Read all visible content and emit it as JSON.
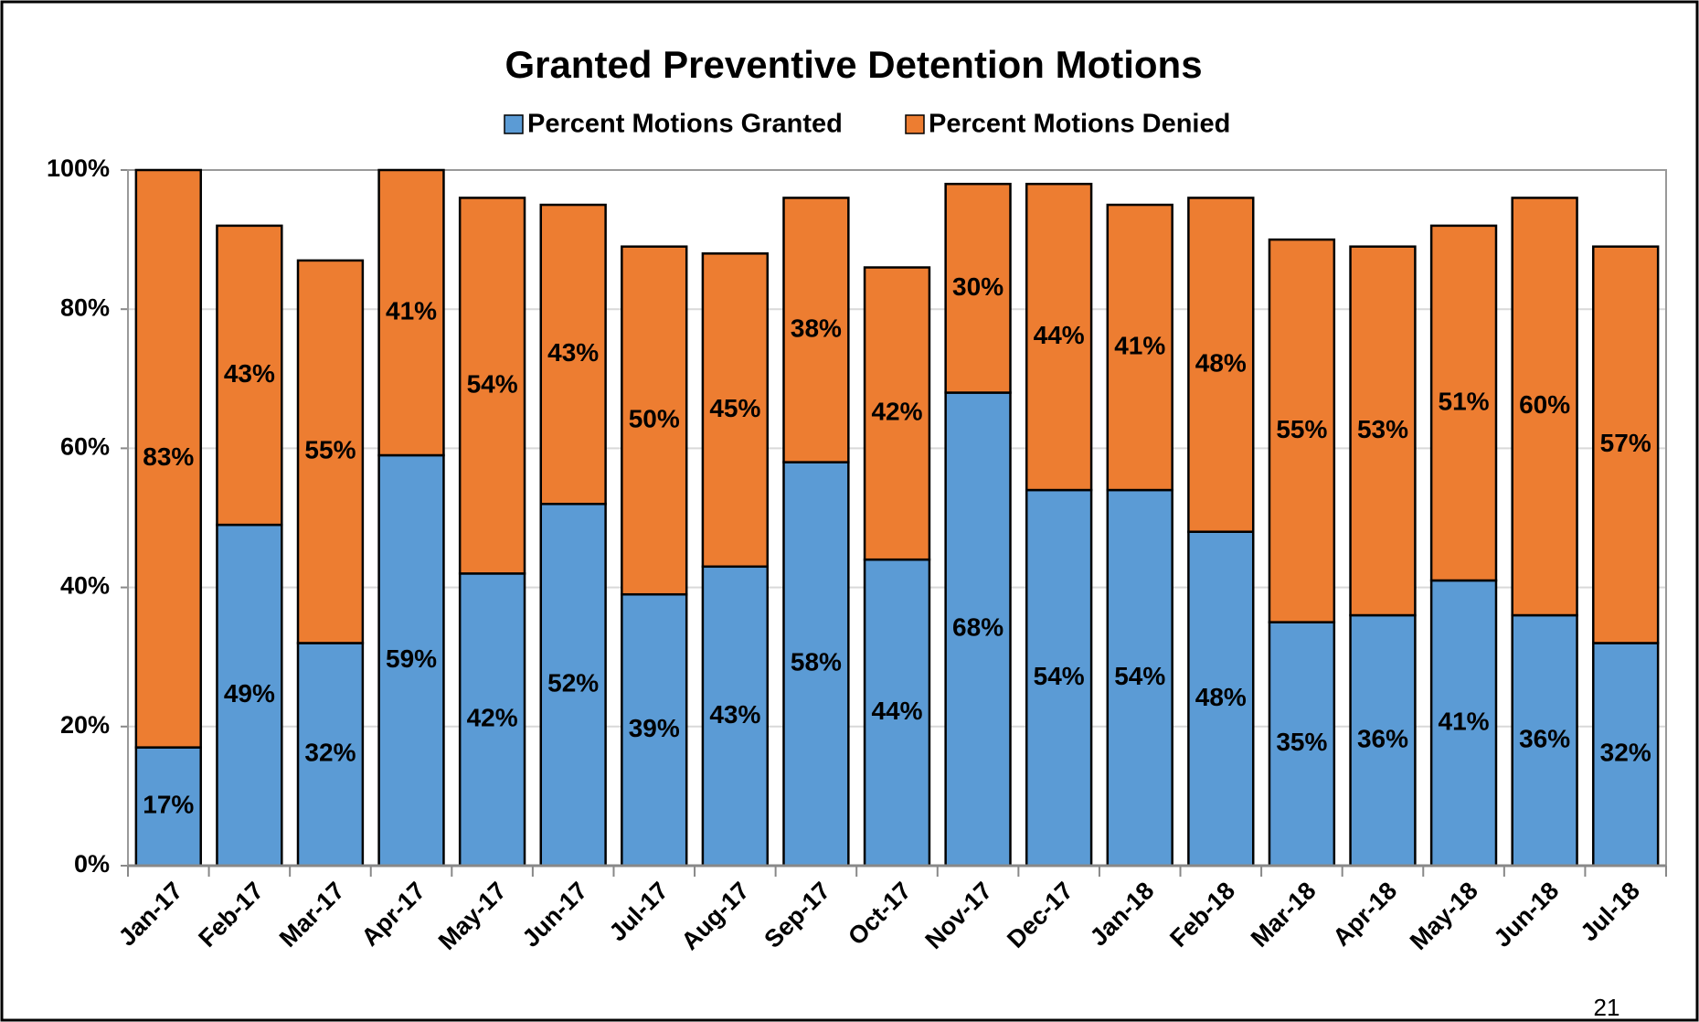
{
  "chart_data": {
    "type": "stacked_bar",
    "title": "Granted Preventive Detention Motions",
    "categories": [
      "Jan-17",
      "Feb-17",
      "Mar-17",
      "Apr-17",
      "May-17",
      "Jun-17",
      "Jul-17",
      "Aug-17",
      "Sep-17",
      "Oct-17",
      "Nov-17",
      "Dec-17",
      "Jan-18",
      "Feb-18",
      "Mar-18",
      "Apr-18",
      "May-18",
      "Jun-18",
      "Jul-18"
    ],
    "series": [
      {
        "name": "Percent Motions Granted",
        "color": "#5b9bd5",
        "values": [
          17,
          49,
          32,
          59,
          42,
          52,
          39,
          43,
          58,
          44,
          68,
          54,
          54,
          48,
          35,
          36,
          41,
          36,
          32
        ],
        "value_labels": [
          "17%",
          "49%",
          "32%",
          "59%",
          "42%",
          "52%",
          "39%",
          "43%",
          "58%",
          "44%",
          "68%",
          "54%",
          "54%",
          "48%",
          "35%",
          "36%",
          "41%",
          "36%",
          "32%"
        ]
      },
      {
        "name": "Percent Motions Denied",
        "color": "#ed7d31",
        "values": [
          83,
          43,
          55,
          41,
          54,
          43,
          50,
          45,
          38,
          42,
          30,
          44,
          41,
          48,
          55,
          53,
          51,
          60,
          57
        ],
        "value_labels": [
          "83%",
          "43%",
          "55%",
          "41%",
          "54%",
          "43%",
          "50%",
          "45%",
          "38%",
          "42%",
          "30%",
          "44%",
          "41%",
          "48%",
          "55%",
          "53%",
          "51%",
          "60%",
          "57%"
        ]
      }
    ],
    "ylim": [
      0,
      100
    ],
    "yticks": [
      {
        "value": 0,
        "label": "0%"
      },
      {
        "value": 20,
        "label": "20%"
      },
      {
        "value": 40,
        "label": "40%"
      },
      {
        "value": 60,
        "label": "60%"
      },
      {
        "value": 80,
        "label": "80%"
      },
      {
        "value": 100,
        "label": "100%"
      }
    ],
    "grid": true,
    "legend": "top"
  },
  "page_number": "21"
}
